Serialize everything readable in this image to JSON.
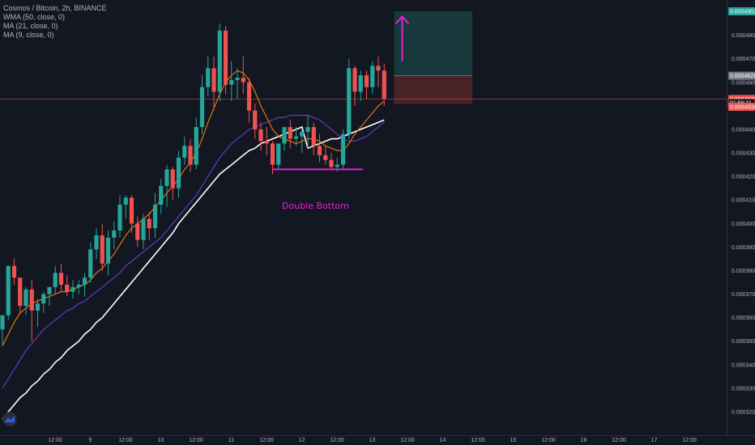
{
  "legend": {
    "symbol_line": "Cosmos / Bitcoin, 2h, BINANCE",
    "wma": "WMA (50, close, 0)",
    "ma21": "MA (21, close, 0)",
    "ma9": "MA (9, close, 0)"
  },
  "colors": {
    "background": "#131722",
    "up": "#26a69a",
    "down": "#ef5350",
    "wma": "#ffffff",
    "ma21": "#673ab7",
    "ma9": "#f57c00",
    "annotation": "#e91ed6",
    "target_zone": "#17393c",
    "stop_zone": "#4a2329",
    "axis_text": "#b2b5be"
  },
  "chart_data": {
    "type": "candlestick",
    "title": "Cosmos / Bitcoin, 2h, BINANCE",
    "y_range": [
      0.00031,
      0.000495
    ],
    "y_ticks": [
      "0.0003200",
      "0.0003300",
      "0.0003400",
      "0.0003500",
      "0.0003600",
      "0.0003700",
      "0.0003800",
      "0.0003900",
      "0.0004000",
      "0.0004100",
      "0.0004200",
      "0.0004300",
      "0.0004400",
      "0.0004500",
      "0.0004600",
      "0.0004700",
      "0.0004800"
    ],
    "y_tick_values": [
      0.00032,
      0.00033,
      0.00034,
      0.00035,
      0.00036,
      0.00037,
      0.00038,
      0.00039,
      0.0004,
      0.00041,
      0.00042,
      0.00043,
      0.00044,
      0.00045,
      0.00046,
      0.00047,
      0.00048
    ],
    "x_ticks": [
      {
        "label": "12:00",
        "i": 4
      },
      {
        "label": "9",
        "i": 10
      },
      {
        "label": "12:00",
        "i": 16
      },
      {
        "label": "10",
        "i": 22
      },
      {
        "label": "12:00",
        "i": 28
      },
      {
        "label": "11",
        "i": 34
      },
      {
        "label": "12:00",
        "i": 40
      },
      {
        "label": "12",
        "i": 46
      },
      {
        "label": "12:00",
        "i": 52
      },
      {
        "label": "13",
        "i": 58
      },
      {
        "label": "12:00",
        "i": 64
      },
      {
        "label": "14",
        "i": 70
      },
      {
        "label": "12:00",
        "i": 76
      },
      {
        "label": "15",
        "i": 82
      },
      {
        "label": "12:00",
        "i": 88
      },
      {
        "label": "16",
        "i": 94
      },
      {
        "label": "12:00",
        "i": 100
      },
      {
        "label": "17",
        "i": 106
      },
      {
        "label": "12:00",
        "i": 112
      }
    ],
    "price_tags": [
      {
        "label": "0.0004902",
        "value": 0.0004902,
        "color": "#26a69a"
      },
      {
        "label": "0.0004628",
        "value": 0.0004628,
        "color": "#787b86"
      },
      {
        "label": "0.0004529",
        "value": 0.0004529,
        "color": "#ef5350"
      },
      {
        "label": "01:56:11",
        "value": 0.00045125,
        "color": "#131722",
        "border": "#ef5350",
        "text": "#ef5350"
      },
      {
        "label": "0.0004508",
        "value": 0.0004496,
        "color": "#ef5350"
      }
    ],
    "candles": [
      [
        0.000355,
        0.000361,
        0.000348,
        0.000361
      ],
      [
        0.000361,
        0.000382,
        0.000359,
        0.000382
      ],
      [
        0.000382,
        0.000385,
        0.000374,
        0.000377
      ],
      [
        0.000377,
        0.000377,
        0.000362,
        0.000365
      ],
      [
        0.000365,
        0.000373,
        0.000361,
        0.000372
      ],
      [
        0.000372,
        0.000376,
        0.00035,
        0.000363
      ],
      [
        0.000363,
        0.000368,
        0.000356,
        0.000366
      ],
      [
        0.000366,
        0.000371,
        0.000362,
        0.00037
      ],
      [
        0.00037,
        0.000373,
        0.000365,
        0.000373
      ],
      [
        0.000373,
        0.000382,
        0.00037,
        0.000379
      ],
      [
        0.000379,
        0.000383,
        0.000371,
        0.000374
      ],
      [
        0.000374,
        0.000378,
        0.000369,
        0.000371
      ],
      [
        0.000371,
        0.000376,
        0.000368,
        0.000373
      ],
      [
        0.000373,
        0.000376,
        0.00037,
        0.000374
      ],
      [
        0.000374,
        0.000379,
        0.000369,
        0.000377
      ],
      [
        0.000377,
        0.000392,
        0.000375,
        0.000389
      ],
      [
        0.000389,
        0.000398,
        0.000385,
        0.000395
      ],
      [
        0.000395,
        0.0004,
        0.00038,
        0.000383
      ],
      [
        0.000383,
        0.000397,
        0.000378,
        0.000394
      ],
      [
        0.000394,
        0.000401,
        0.000389,
        0.000397
      ],
      [
        0.000397,
        0.000412,
        0.000394,
        0.000408
      ],
      [
        0.000408,
        0.000412,
        0.000402,
        0.000411
      ],
      [
        0.000411,
        0.000412,
        0.000396,
        0.0004
      ],
      [
        0.0004,
        0.000403,
        0.00039,
        0.000393
      ],
      [
        0.000393,
        0.000404,
        0.000389,
        0.000402
      ],
      [
        0.000402,
        0.000405,
        0.000393,
        0.000398
      ],
      [
        0.000398,
        0.000413,
        0.000394,
        0.000408
      ],
      [
        0.000408,
        0.000419,
        0.000404,
        0.000416
      ],
      [
        0.000416,
        0.000425,
        0.000407,
        0.000423
      ],
      [
        0.000423,
        0.000424,
        0.00041,
        0.000415
      ],
      [
        0.000415,
        0.000431,
        0.000411,
        0.000428
      ],
      [
        0.000428,
        0.000437,
        0.000425,
        0.000433
      ],
      [
        0.000433,
        0.000436,
        0.000422,
        0.000425
      ],
      [
        0.000425,
        0.000445,
        0.000423,
        0.000441
      ],
      [
        0.000441,
        0.000463,
        0.000438,
        0.000458
      ],
      [
        0.000458,
        0.000471,
        0.000454,
        0.000466
      ],
      [
        0.000466,
        0.000471,
        0.000448,
        0.000456
      ],
      [
        0.000456,
        0.000485,
        0.000452,
        0.000482
      ],
      [
        0.000482,
        0.000484,
        0.000455,
        0.000459
      ],
      [
        0.000459,
        0.000469,
        0.000452,
        0.000461
      ],
      [
        0.000461,
        0.000466,
        0.000453,
        0.000462
      ],
      [
        0.000462,
        0.000471,
        0.000455,
        0.00046
      ],
      [
        0.00046,
        0.000462,
        0.000443,
        0.000448
      ],
      [
        0.000448,
        0.000451,
        0.000436,
        0.00044
      ],
      [
        0.00044,
        0.000443,
        0.000431,
        0.000435
      ],
      [
        0.000435,
        0.000441,
        0.000429,
        0.000434
      ],
      [
        0.000434,
        0.000435,
        0.000421,
        0.000425
      ],
      [
        0.000425,
        0.000434,
        0.000423,
        0.000434
      ],
      [
        0.000434,
        0.000441,
        0.000431,
        0.000441
      ],
      [
        0.000441,
        0.000444,
        0.000432,
        0.000436
      ],
      [
        0.000436,
        0.000441,
        0.000433,
        0.000437
      ],
      [
        0.000437,
        0.00044,
        0.00043,
        0.000439
      ],
      [
        0.000439,
        0.000446,
        0.000432,
        0.000441
      ],
      [
        0.000441,
        0.000443,
        0.000429,
        0.000433
      ],
      [
        0.000433,
        0.000438,
        0.000426,
        0.000429
      ],
      [
        0.000429,
        0.000433,
        0.000425,
        0.000427
      ],
      [
        0.000427,
        0.00043,
        0.000423,
        0.000424
      ],
      [
        0.000424,
        0.000428,
        0.000422,
        0.000425
      ],
      [
        0.000425,
        0.00044,
        0.000423,
        0.000438
      ],
      [
        0.000438,
        0.00047,
        0.000436,
        0.000466
      ],
      [
        0.000466,
        0.000467,
        0.00045,
        0.000456
      ],
      [
        0.000456,
        0.000465,
        0.000452,
        0.000463
      ],
      [
        0.000463,
        0.000465,
        0.000453,
        0.000458
      ],
      [
        0.000458,
        0.000469,
        0.000455,
        0.000467
      ],
      [
        0.000467,
        0.000471,
        0.000458,
        0.000465
      ],
      [
        0.000465,
        0.000468,
        0.00045,
        0.000453
      ]
    ],
    "ma9": [
      0.000348,
      0.000353,
      0.000358,
      0.000362,
      0.000364,
      0.000366,
      0.000367,
      0.000368,
      0.000369,
      0.00037,
      0.000371,
      0.000371,
      0.000372,
      0.000373,
      0.000374,
      0.000376,
      0.000379,
      0.000381,
      0.000384,
      0.000387,
      0.000391,
      0.000395,
      0.000398,
      0.0004,
      0.000402,
      0.000404,
      0.000407,
      0.00041,
      0.000413,
      0.000416,
      0.000419,
      0.000423,
      0.000426,
      0.00043,
      0.000436,
      0.000443,
      0.000449,
      0.000455,
      0.00046,
      0.000463,
      0.000465,
      0.000464,
      0.000461,
      0.000456,
      0.00045,
      0.000445,
      0.00044,
      0.000437,
      0.000436,
      0.000435,
      0.000434,
      0.000435,
      0.000436,
      0.000436,
      0.000435,
      0.000433,
      0.000432,
      0.000431,
      0.000431,
      0.000434,
      0.000438,
      0.000441,
      0.000444,
      0.000447,
      0.00045,
      0.000452
    ],
    "ma21": [
      0.00033,
      0.000334,
      0.000338,
      0.000342,
      0.000346,
      0.000349,
      0.000352,
      0.000355,
      0.000357,
      0.000359,
      0.000361,
      0.000363,
      0.000364,
      0.000366,
      0.000367,
      0.000369,
      0.000371,
      0.000373,
      0.000375,
      0.000377,
      0.000379,
      0.000382,
      0.000384,
      0.000386,
      0.000388,
      0.00039,
      0.000392,
      0.000394,
      0.000397,
      0.0004,
      0.000403,
      0.000406,
      0.000409,
      0.000412,
      0.000416,
      0.00042,
      0.000424,
      0.000428,
      0.000431,
      0.000434,
      0.000436,
      0.000438,
      0.00044,
      0.000441,
      0.000442,
      0.000443,
      0.000444,
      0.000445,
      0.000445,
      0.000446,
      0.000446,
      0.000446,
      0.000446,
      0.000445,
      0.000444,
      0.000442,
      0.00044,
      0.000438,
      0.000436,
      0.000435,
      0.000435,
      0.000436,
      0.000437,
      0.000439,
      0.000441,
      0.000443
    ],
    "wma50": [
      0.000317,
      0.00032,
      0.000323,
      0.000326,
      0.000328,
      0.000331,
      0.000333,
      0.000336,
      0.000338,
      0.000341,
      0.000343,
      0.000346,
      0.000348,
      0.00035,
      0.000353,
      0.000355,
      0.000358,
      0.00036,
      0.000363,
      0.000366,
      0.000369,
      0.000372,
      0.000375,
      0.000378,
      0.000381,
      0.000384,
      0.000387,
      0.00039,
      0.000393,
      0.000396,
      0.0004,
      0.000403,
      0.000406,
      0.000409,
      0.000412,
      0.000415,
      0.000418,
      0.000421,
      0.000423,
      0.000425,
      0.000427,
      0.000429,
      0.000431,
      0.000432,
      0.000434,
      0.000435,
      0.000436,
      0.000437,
      0.000438,
      0.000439,
      0.00044,
      0.000441,
      0.000432,
      0.000433,
      0.000434,
      0.000435,
      0.000436,
      0.000436,
      0.000437,
      0.000438,
      0.000439,
      0.00044,
      0.000441,
      0.000442,
      0.000443,
      0.000444
    ],
    "annotations": {
      "pattern_label": "Double Bottom",
      "neckline": {
        "i_start": 46,
        "i_end": 61,
        "value": 0.000423
      },
      "target_zone": {
        "i_start": 66,
        "i_end": 80,
        "from": 0.0004628,
        "to": 0.0004902
      },
      "stop_zone": {
        "i_start": 66,
        "i_end": 80,
        "from": 0.0004508,
        "to": 0.0004628
      },
      "arrow": {
        "i": 68,
        "from": 0.000469,
        "to": 0.000488
      },
      "current_price_line": 0.0004529
    }
  }
}
